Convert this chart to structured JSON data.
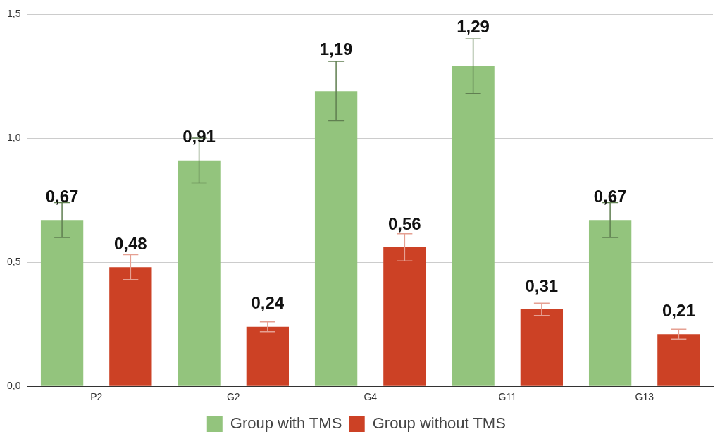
{
  "chart_data": {
    "type": "bar",
    "categories": [
      "P2",
      "G2",
      "G4",
      "G11",
      "G13"
    ],
    "series": [
      {
        "name": "Group with TMS",
        "color": "#93c47d",
        "values": [
          0.67,
          0.91,
          1.19,
          1.29,
          0.67
        ],
        "errors": [
          0.07,
          0.09,
          0.12,
          0.11,
          0.07
        ],
        "value_labels": [
          "0,67",
          "0,91",
          "1,19",
          "1,29",
          "0,67"
        ]
      },
      {
        "name": "Group without TMS",
        "color": "#cc4125",
        "values": [
          0.48,
          0.24,
          0.56,
          0.31,
          0.21
        ],
        "errors": [
          0.05,
          0.02,
          0.055,
          0.025,
          0.02
        ],
        "value_labels": [
          "0,48",
          "0,24",
          "0,56",
          "0,31",
          "0,21"
        ]
      }
    ],
    "ylim": [
      0,
      1.5
    ],
    "yticks": [
      {
        "value": 0,
        "label": "0,0"
      },
      {
        "value": 0.5,
        "label": "0,5"
      },
      {
        "value": 1,
        "label": "1,0"
      },
      {
        "value": 1.5,
        "label": "1,5"
      }
    ],
    "grid": "y",
    "legend": "bottom"
  }
}
